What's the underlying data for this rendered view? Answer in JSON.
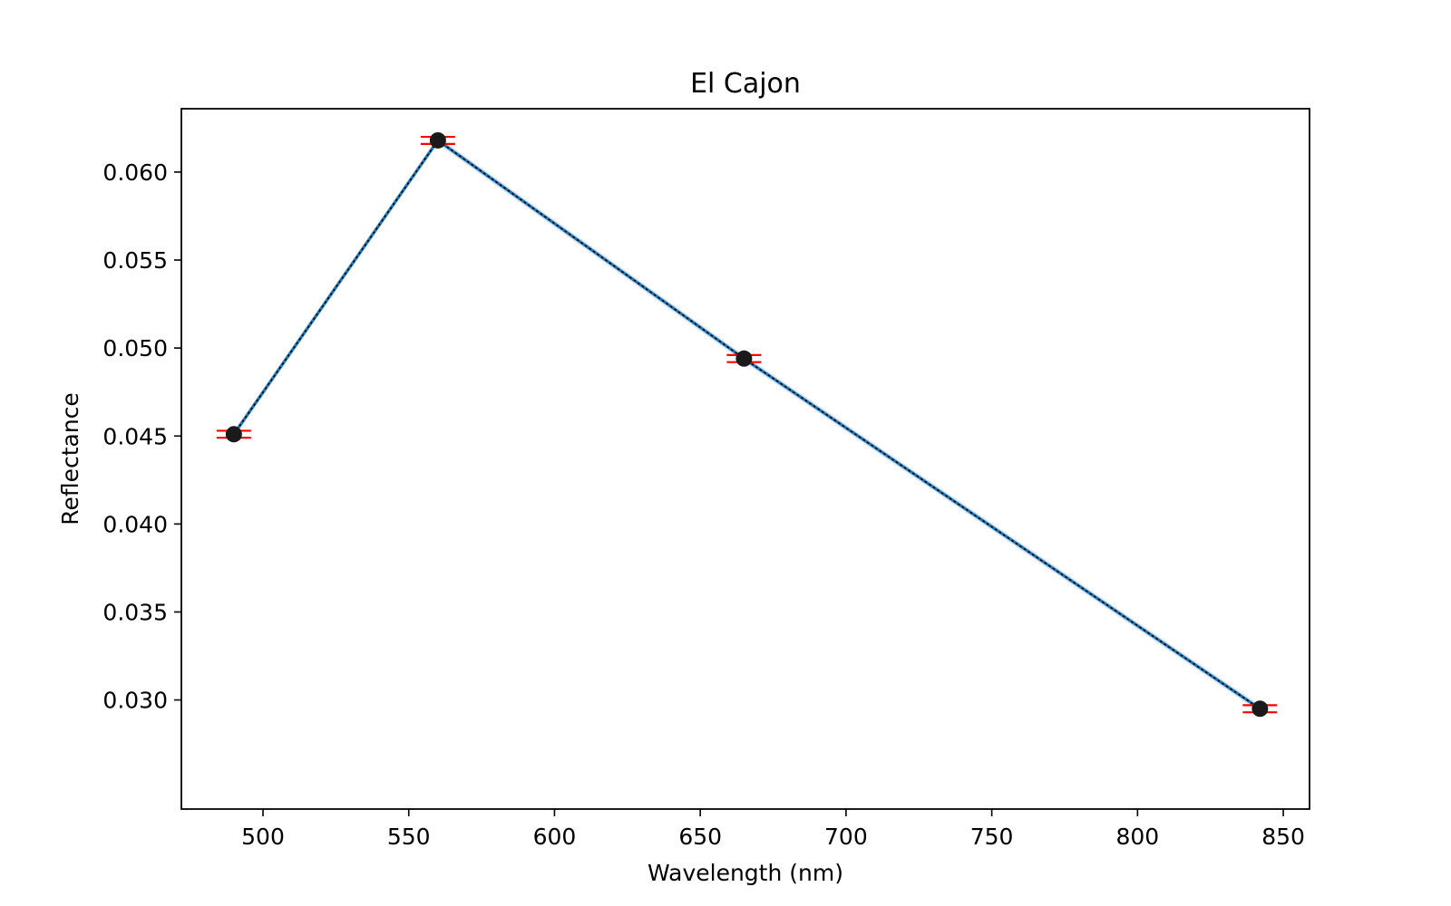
{
  "chart_data": {
    "type": "line",
    "title": "El Cajon",
    "xlabel": "Wavelength (nm)",
    "ylabel": "Reflectance",
    "xlim": [
      472,
      859
    ],
    "ylim": [
      0.0238,
      0.0636
    ],
    "x_ticks": [
      500,
      550,
      600,
      650,
      700,
      750,
      800,
      850
    ],
    "x_tick_labels": [
      "500",
      "550",
      "600",
      "650",
      "700",
      "750",
      "800",
      "850"
    ],
    "y_ticks": [
      0.03,
      0.035,
      0.04,
      0.045,
      0.05,
      0.055,
      0.06
    ],
    "y_tick_labels": [
      "0.030",
      "0.035",
      "0.040",
      "0.045",
      "0.050",
      "0.055",
      "0.060"
    ],
    "grid": false,
    "series": [
      {
        "x": [
          490,
          560,
          665,
          842
        ],
        "y": [
          0.0451,
          0.0618,
          0.0494,
          0.0295
        ],
        "y_error": [
          0.0002,
          0.0002,
          0.0002,
          0.0002
        ]
      }
    ],
    "colors": {
      "line": "#1f77b4",
      "line_overlay": "#000000",
      "marker": "#1a1a1a",
      "error_bars": "#ff0000",
      "band": "#aec7e8"
    }
  }
}
